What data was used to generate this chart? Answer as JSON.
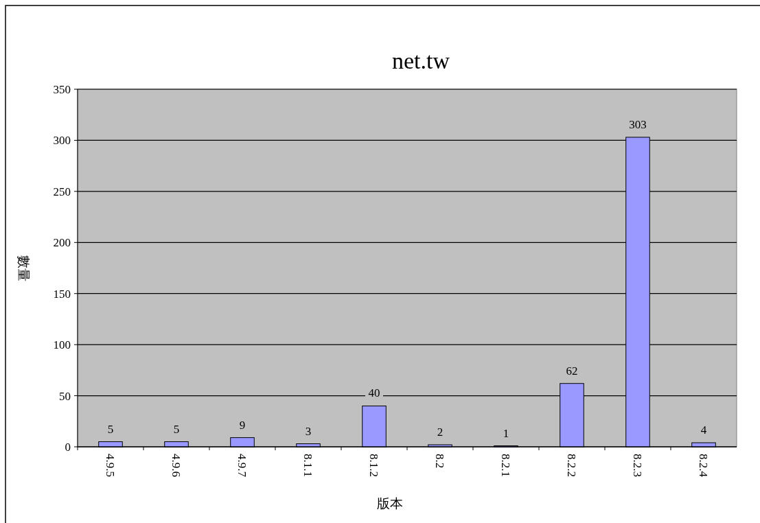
{
  "chart_data": {
    "type": "bar",
    "title": "net.tw",
    "xlabel": "版本",
    "ylabel": "數量",
    "categories": [
      "4.9.5",
      "4.9.6",
      "4.9.7",
      "8.1.1",
      "8.1.2",
      "8.2",
      "8.2.1",
      "8.2.2",
      "8.2.3",
      "8.2.4"
    ],
    "values": [
      5,
      5,
      9,
      3,
      40,
      2,
      1,
      62,
      303,
      4
    ],
    "color": "#9999ff",
    "ylim": [
      0,
      350
    ],
    "yticks": [
      0,
      50,
      100,
      150,
      200,
      250,
      300,
      350
    ],
    "grid": "y",
    "data_labels": true
  }
}
